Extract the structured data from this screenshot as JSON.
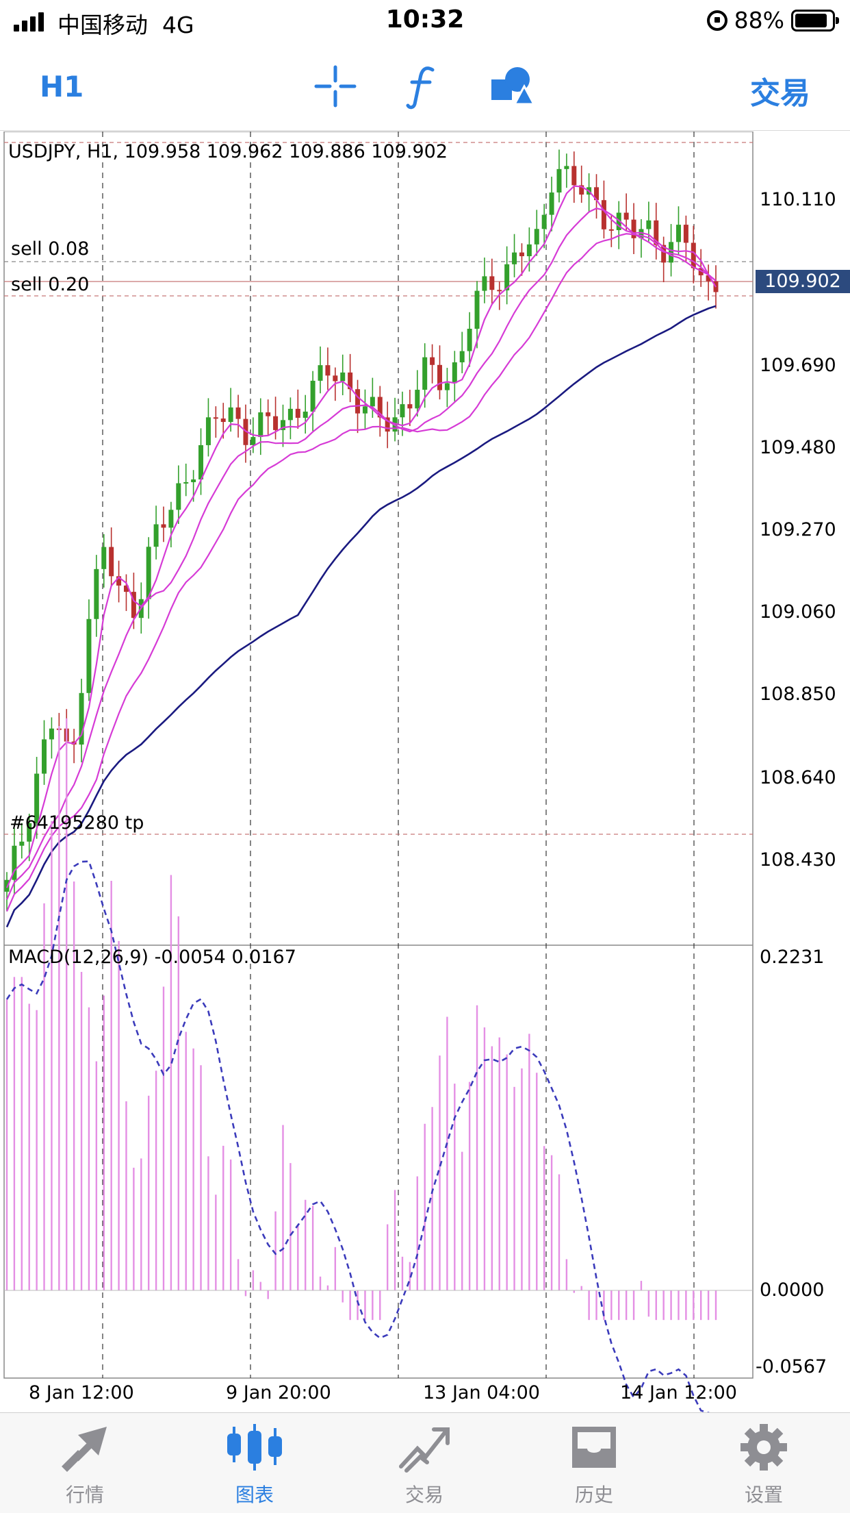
{
  "status_bar": {
    "carrier": "中国移动",
    "network": "4G",
    "time": "10:32",
    "battery": "88%"
  },
  "toolbar": {
    "timeframe": "H1",
    "crosshair_icon": "crosshair-icon",
    "indicator_icon": "function-icon",
    "objects_icon": "shapes-icon",
    "trade_label": "交易",
    "accent_color": "#2b7fe0"
  },
  "chart": {
    "header": "USDJPY, H1, 109.958 109.962 109.886 109.902",
    "current_price": "109.902",
    "orders": {
      "sell1": "sell 0.08",
      "sell2": "sell 0.20",
      "tp": "#64195280 tp"
    },
    "price_axis": [
      "110.110",
      "109.690",
      "109.480",
      "109.270",
      "109.060",
      "108.850",
      "108.640",
      "108.430"
    ],
    "macd_label": "MACD(12,26,9) -0.0054 0.0167",
    "macd_axis": {
      "top": "0.2231",
      "zero": "0.0000",
      "bottom": "-0.0567"
    },
    "time_axis": [
      "8 Jan 12:00",
      "9 Jan 20:00",
      "13 Jan 04:00",
      "14 Jan 12:00"
    ],
    "colors": {
      "bull": "#33a02c",
      "bear": "#b8312f",
      "ma": "#d63bd6",
      "ma_long": "#1a1a80",
      "macd_hist": "#e48fe4",
      "macd_signal": "#3b3bbb"
    }
  },
  "chart_data": {
    "type": "candlestick",
    "symbol": "USDJPY",
    "timeframe": "H1",
    "ohlc_last": {
      "open": 109.958,
      "high": 109.962,
      "low": 109.886,
      "close": 109.902
    },
    "y_ticks": [
      110.11,
      109.69,
      109.48,
      109.27,
      109.06,
      108.85,
      108.64,
      108.43
    ],
    "x_ticks": [
      "8 Jan 12:00",
      "9 Jan 20:00",
      "13 Jan 04:00",
      "14 Jan 12:00"
    ],
    "close_path": [
      108.36,
      108.5,
      108.68,
      108.8,
      108.65,
      109.05,
      109.22,
      109.1,
      109.08,
      109.24,
      109.3,
      109.4,
      109.48,
      109.55,
      109.57,
      109.52,
      109.53,
      109.55,
      109.58,
      109.62,
      109.68,
      109.66,
      109.58,
      109.55,
      109.56,
      109.6,
      109.67,
      109.66,
      109.69,
      109.84,
      109.9,
      109.94,
      109.98,
      110.0,
      110.22,
      110.15,
      110.12,
      110.08,
      110.05,
      110.02,
      110.04,
      109.98,
      110.02,
      109.9,
      109.92
    ],
    "macd": {
      "params": "12,26,9",
      "main": -0.0054,
      "signal": 0.0167,
      "range": [
        -0.0567,
        0.2231
      ]
    }
  }
}
